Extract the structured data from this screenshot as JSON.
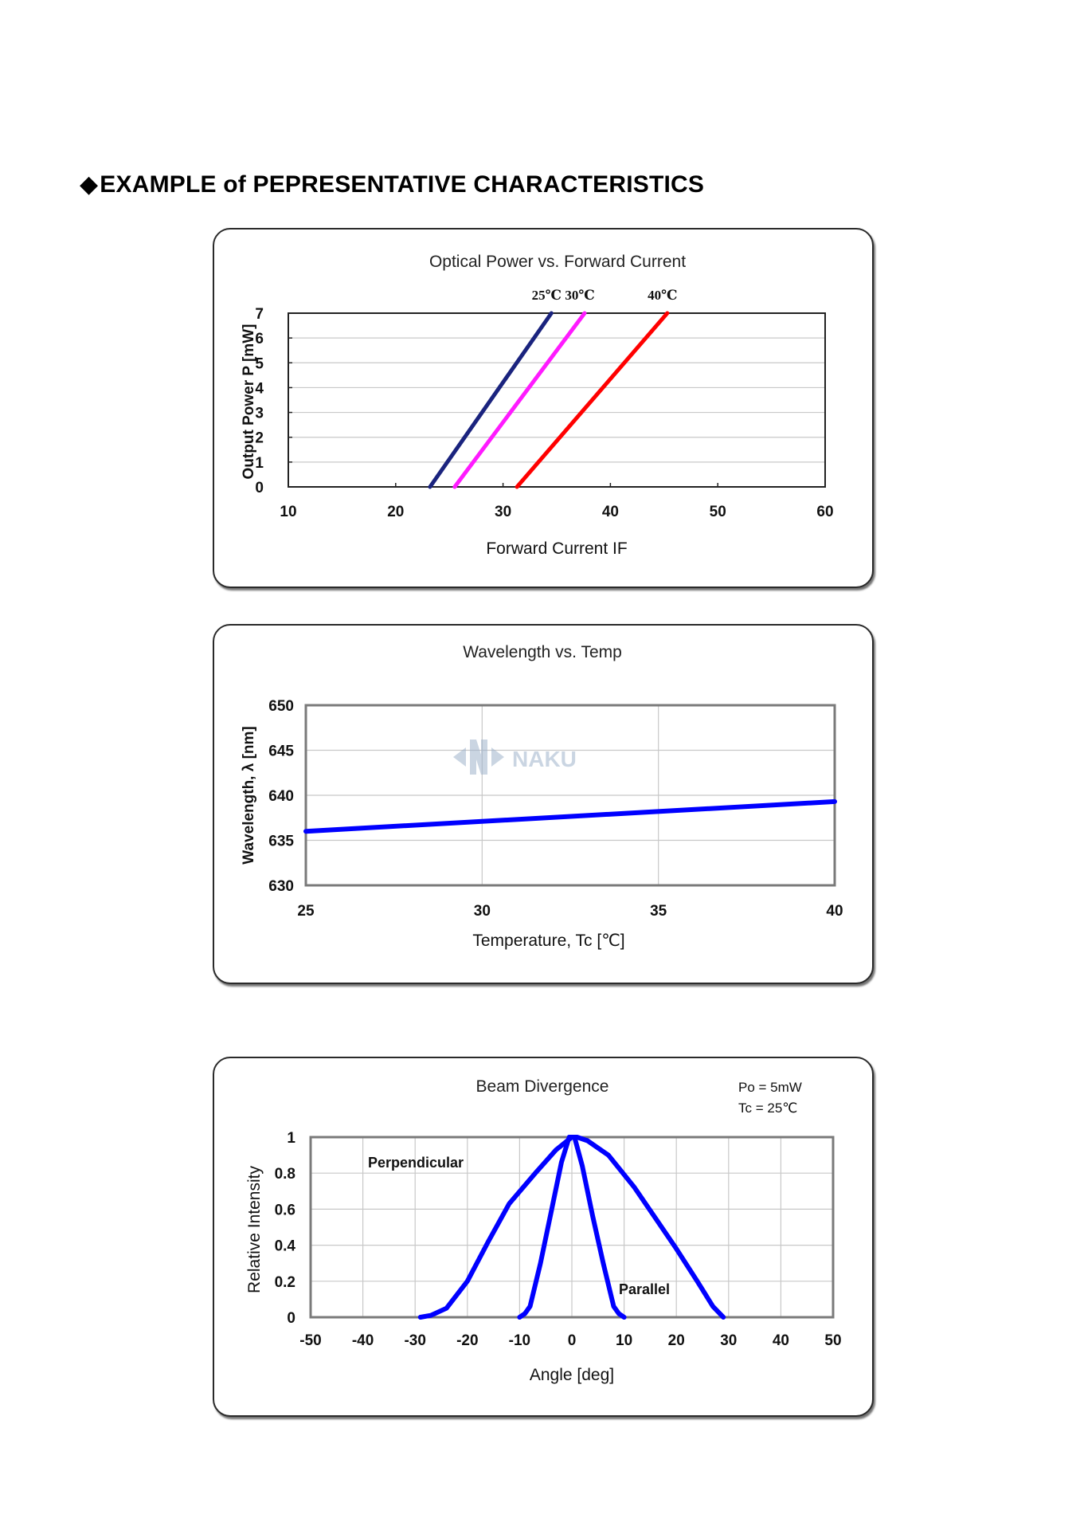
{
  "heading": {
    "diamond": "◆",
    "text": "EXAMPLE of PEPRESENTATIVE CHARACTERISTICS"
  },
  "watermark": {
    "text": "NAKU",
    "color": "#9fb3cc"
  },
  "chart_data": [
    {
      "type": "line",
      "title": "Optical Power vs. Forward Current",
      "xlabel": "Forward Current  IF",
      "ylabel": "Output Power  P [mW]",
      "xlim": [
        10,
        60
      ],
      "ylim": [
        0,
        7
      ],
      "xticks": [
        10,
        20,
        30,
        40,
        50,
        60
      ],
      "yticks": [
        0,
        1,
        2,
        3,
        4,
        5,
        6,
        7
      ],
      "grid": true,
      "series": [
        {
          "name": "25℃",
          "color": "#1a237e",
          "x": [
            23.2,
            34.5
          ],
          "y": [
            0,
            7
          ]
        },
        {
          "name": "30℃",
          "color": "#ff1aff",
          "x": [
            25.5,
            37.6
          ],
          "y": [
            0,
            7
          ]
        },
        {
          "name": "40℃",
          "color": "#ff0000",
          "x": [
            31.3,
            45.3
          ],
          "y": [
            0,
            7
          ]
        }
      ]
    },
    {
      "type": "line",
      "title": "Wavelength vs. Temp",
      "xlabel": "Temperature, Tc [℃]",
      "ylabel": "Wavelength, λ [nm]",
      "xlim": [
        25,
        40
      ],
      "ylim": [
        630,
        650
      ],
      "xticks": [
        25,
        30,
        35,
        40
      ],
      "yticks": [
        630,
        635,
        640,
        645,
        650
      ],
      "grid": true,
      "series": [
        {
          "color": "#0000ff",
          "x": [
            25,
            40
          ],
          "y": [
            636.0,
            639.3
          ]
        }
      ]
    },
    {
      "type": "line",
      "title": "Beam Divergence",
      "notes": [
        "Po = 5mW",
        "Tc = 25℃"
      ],
      "xlabel": "Angle [deg]",
      "ylabel": "Relative Intensity",
      "xlim": [
        -50,
        50
      ],
      "ylim": [
        0,
        1
      ],
      "xticks": [
        -50,
        -40,
        -30,
        -20,
        -10,
        0,
        10,
        20,
        30,
        40,
        50
      ],
      "yticks": [
        0,
        0.2,
        0.4,
        0.6,
        0.8,
        1
      ],
      "ytick_labels": [
        "0",
        "0.2",
        "0.4",
        "0.6",
        "0.8",
        "1"
      ],
      "grid": true,
      "annotations": [
        "Perpendicular",
        "Parallel"
      ],
      "series": [
        {
          "name": "Perpendicular",
          "color": "#0000ff",
          "x": [
            -29,
            -27,
            -24,
            -20,
            -16,
            -12,
            -7,
            -3,
            0,
            1,
            3,
            7,
            12,
            16,
            20,
            24,
            27,
            29
          ],
          "y": [
            0,
            0.01,
            0.05,
            0.2,
            0.42,
            0.63,
            0.8,
            0.93,
            1,
            1,
            0.98,
            0.9,
            0.72,
            0.55,
            0.38,
            0.2,
            0.06,
            0
          ]
        },
        {
          "name": "Parallel",
          "color": "#0000ff",
          "x": [
            -10,
            -9,
            -8,
            -6,
            -4,
            -2,
            -0.5,
            0.5,
            2,
            4,
            6,
            8,
            9,
            10
          ],
          "y": [
            0,
            0.02,
            0.06,
            0.3,
            0.58,
            0.86,
            1,
            1,
            0.84,
            0.56,
            0.3,
            0.06,
            0.02,
            0
          ]
        }
      ]
    }
  ]
}
